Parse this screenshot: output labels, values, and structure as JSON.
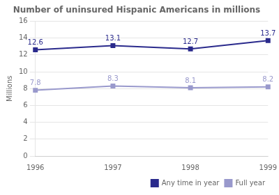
{
  "chart_data": {
    "type": "line",
    "title": "Number of uninsured Hispanic Americans in millions",
    "categories": [
      "1996",
      "1997",
      "1998",
      "1999"
    ],
    "series": [
      {
        "name": "Any time in year",
        "color": "#2a2a8c",
        "values": [
          12.6,
          13.1,
          12.7,
          13.7
        ]
      },
      {
        "name": "Full year",
        "color": "#9999cc",
        "values": [
          7.8,
          8.3,
          8.1,
          8.2
        ]
      }
    ],
    "y_label": "Millions",
    "ylim": [
      0,
      16
    ],
    "yticks": [
      0,
      2,
      4,
      6,
      8,
      10,
      12,
      14,
      16
    ],
    "grid": true,
    "legend": "lower right",
    "data_labels": true,
    "marker": "square"
  }
}
